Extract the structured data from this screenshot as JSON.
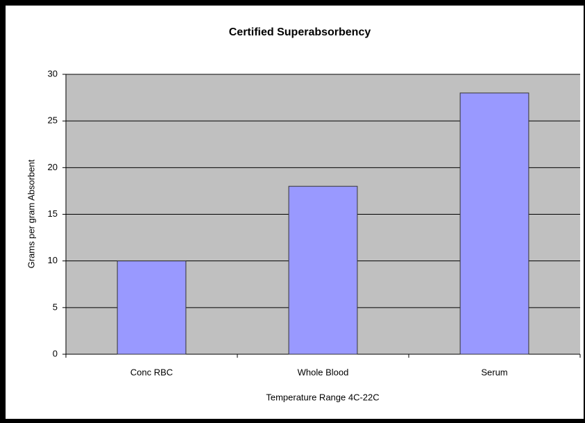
{
  "chart_data": {
    "type": "bar",
    "title": "Certified Superabsorbency",
    "x_label": "Temperature Range 4C-22C",
    "y_label": "Grams per gram Absorbent",
    "categories": [
      "Conc RBC",
      "Whole Blood",
      "Serum"
    ],
    "values": [
      10,
      18,
      28
    ],
    "color": "#9999ff",
    "ylim": [
      0,
      30
    ],
    "yticks": [
      0,
      5,
      10,
      15,
      20,
      25,
      30
    ],
    "grid": true
  }
}
